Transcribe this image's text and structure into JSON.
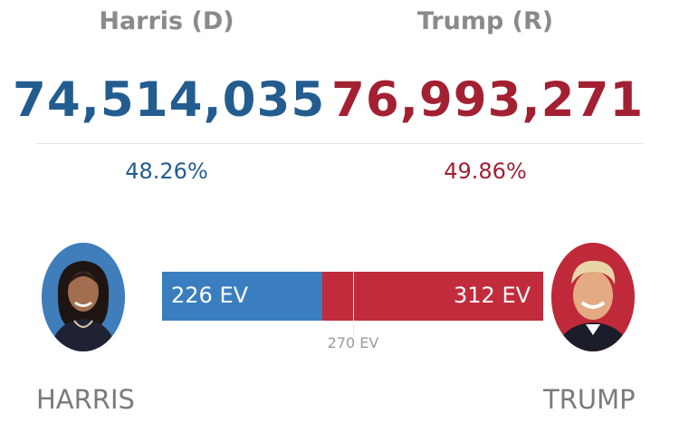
{
  "candidates": {
    "harris": {
      "header": "Harris (D)",
      "votes": "74,514,035",
      "percent": "48.26%",
      "ev": "226 EV",
      "bottom_label": "HARRIS",
      "color": "#235d8f",
      "bar_color": "#3b7ebf"
    },
    "trump": {
      "header": "Trump (R)",
      "votes": "76,993,271",
      "percent": "49.86%",
      "ev": "312 EV",
      "bottom_label": "TRUMP",
      "color": "#a32033",
      "bar_color": "#c22b3c"
    }
  },
  "threshold": {
    "label": "270 EV"
  },
  "electoral_bar": {
    "harris_ev": 226,
    "trump_ev": 312,
    "total_ev": 538
  }
}
